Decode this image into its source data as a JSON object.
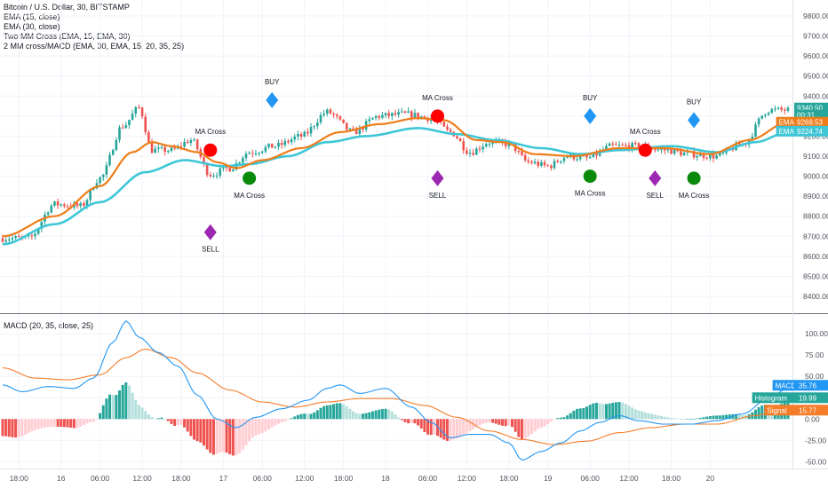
{
  "legend": {
    "title": "Bitcoin / U.S. Dollar, 30, BITSTAMP",
    "ema15": "EMA (15, close)",
    "ema30": "EMA (30, close)",
    "cross": "Two MM Cross (EMA, 15, EMA, 30)",
    "strategy": "2 MM cross/MACD (EMA, 30, EMA, 15, 20, 35, 25)",
    "macd": "MACD (20, 35, close, 25)"
  },
  "colors": {
    "up": "#26a69a",
    "down": "#ef5350",
    "ema15": "#ef7d1a",
    "ema30": "#3ec6d6",
    "macd_line": "#2196f3",
    "signal_line": "#f57c28",
    "hist_up_strong": "#26a69a",
    "hist_up_weak": "#b2dfdb",
    "hist_down_strong": "#ef5350",
    "hist_down_weak": "#ffcdd2",
    "buy": "#2196f3",
    "sell": "#9c27b0",
    "cross_red": "#ff0000",
    "cross_green": "#0a8a0a"
  },
  "chart_data": [
    {
      "type": "candlestick",
      "title": "Bitcoin / U.S. Dollar, 30, BITSTAMP",
      "ylim": [
        8320,
        9880
      ],
      "yticks": [
        "9800.00",
        "9700.00",
        "9600.00",
        "9500.00",
        "9400.00",
        "9300.00",
        "9200.00",
        "9100.00",
        "9000.00",
        "8900.00",
        "8800.00",
        "8700.00",
        "8600.00",
        "8500.00",
        "8400.00"
      ],
      "xticks": [
        "18:00",
        "16",
        "06:00",
        "12:00",
        "18:00",
        "17",
        "06:00",
        "12:00",
        "18:00",
        "18",
        "06:00",
        "12:00",
        "18:00",
        "19",
        "06:00",
        "12:00",
        "18:00",
        "20"
      ],
      "anchors": [
        {
          "i": 0,
          "v": 8690
        },
        {
          "i": 8,
          "v": 8690
        },
        {
          "i": 16,
          "v": 8860
        },
        {
          "i": 24,
          "v": 8850
        },
        {
          "i": 30,
          "v": 8990
        },
        {
          "i": 37,
          "v": 9250
        },
        {
          "i": 42,
          "v": 9340
        },
        {
          "i": 46,
          "v": 9130
        },
        {
          "i": 52,
          "v": 9130
        },
        {
          "i": 58,
          "v": 9180
        },
        {
          "i": 64,
          "v": 9010
        },
        {
          "i": 70,
          "v": 9040
        },
        {
          "i": 76,
          "v": 9120
        },
        {
          "i": 84,
          "v": 9150
        },
        {
          "i": 92,
          "v": 9200
        },
        {
          "i": 100,
          "v": 9320
        },
        {
          "i": 108,
          "v": 9220
        },
        {
          "i": 116,
          "v": 9300
        },
        {
          "i": 124,
          "v": 9310
        },
        {
          "i": 132,
          "v": 9290
        },
        {
          "i": 138,
          "v": 9220
        },
        {
          "i": 144,
          "v": 9120
        },
        {
          "i": 150,
          "v": 9170
        },
        {
          "i": 156,
          "v": 9160
        },
        {
          "i": 162,
          "v": 9070
        },
        {
          "i": 168,
          "v": 9050
        },
        {
          "i": 174,
          "v": 9100
        },
        {
          "i": 180,
          "v": 9090
        },
        {
          "i": 188,
          "v": 9150
        },
        {
          "i": 196,
          "v": 9150
        },
        {
          "i": 204,
          "v": 9130
        },
        {
          "i": 212,
          "v": 9110
        },
        {
          "i": 220,
          "v": 9100
        },
        {
          "i": 228,
          "v": 9160
        },
        {
          "i": 236,
          "v": 9330
        },
        {
          "i": 242,
          "v": 9330
        }
      ],
      "ema15": [
        {
          "i": 0,
          "v": 8700
        },
        {
          "i": 16,
          "v": 8800
        },
        {
          "i": 30,
          "v": 8950
        },
        {
          "i": 40,
          "v": 9120
        },
        {
          "i": 46,
          "v": 9170
        },
        {
          "i": 52,
          "v": 9150
        },
        {
          "i": 60,
          "v": 9120
        },
        {
          "i": 66,
          "v": 9070
        },
        {
          "i": 72,
          "v": 9040
        },
        {
          "i": 80,
          "v": 9080
        },
        {
          "i": 92,
          "v": 9140
        },
        {
          "i": 104,
          "v": 9220
        },
        {
          "i": 116,
          "v": 9260
        },
        {
          "i": 128,
          "v": 9290
        },
        {
          "i": 136,
          "v": 9280
        },
        {
          "i": 146,
          "v": 9180
        },
        {
          "i": 154,
          "v": 9170
        },
        {
          "i": 164,
          "v": 9110
        },
        {
          "i": 176,
          "v": 9100
        },
        {
          "i": 190,
          "v": 9140
        },
        {
          "i": 204,
          "v": 9140
        },
        {
          "i": 218,
          "v": 9110
        },
        {
          "i": 230,
          "v": 9180
        },
        {
          "i": 242,
          "v": 9270
        }
      ],
      "ema30": [
        {
          "i": 0,
          "v": 8660
        },
        {
          "i": 16,
          "v": 8760
        },
        {
          "i": 30,
          "v": 8870
        },
        {
          "i": 44,
          "v": 9020
        },
        {
          "i": 56,
          "v": 9080
        },
        {
          "i": 68,
          "v": 9050
        },
        {
          "i": 76,
          "v": 9060
        },
        {
          "i": 88,
          "v": 9100
        },
        {
          "i": 100,
          "v": 9170
        },
        {
          "i": 112,
          "v": 9200
        },
        {
          "i": 128,
          "v": 9240
        },
        {
          "i": 140,
          "v": 9210
        },
        {
          "i": 152,
          "v": 9180
        },
        {
          "i": 166,
          "v": 9140
        },
        {
          "i": 178,
          "v": 9110
        },
        {
          "i": 190,
          "v": 9130
        },
        {
          "i": 206,
          "v": 9150
        },
        {
          "i": 220,
          "v": 9120
        },
        {
          "i": 232,
          "v": 9170
        },
        {
          "i": 242,
          "v": 9220
        }
      ],
      "signals": [
        {
          "kind": "cross-red",
          "i": 64,
          "v": 9130,
          "label": "MA Cross",
          "label_pos": "above"
        },
        {
          "kind": "sell",
          "i": 64,
          "v": 8720,
          "label": "SELL",
          "label_pos": "below"
        },
        {
          "kind": "buy",
          "i": 83,
          "v": 9380,
          "label": "BUY",
          "label_pos": "above"
        },
        {
          "kind": "cross-green",
          "i": 76,
          "v": 8990,
          "label": "MA Cross",
          "label_pos": "below"
        },
        {
          "kind": "cross-red",
          "i": 134,
          "v": 9300,
          "label": "MA Cross",
          "label_pos": "above"
        },
        {
          "kind": "sell",
          "i": 134,
          "v": 8990,
          "label": "SELL",
          "label_pos": "below"
        },
        {
          "kind": "buy",
          "i": 181,
          "v": 9300,
          "label": "BUY",
          "label_pos": "above"
        },
        {
          "kind": "cross-green",
          "i": 181,
          "v": 9000,
          "label": "MA Cross",
          "label_pos": "below"
        },
        {
          "kind": "cross-red",
          "i": 198,
          "v": 9130,
          "label": "MA Cross",
          "label_pos": "above"
        },
        {
          "kind": "sell",
          "i": 201,
          "v": 8990,
          "label": "SELL",
          "label_pos": "below"
        },
        {
          "kind": "buy",
          "i": 213,
          "v": 9280,
          "label": "BUY",
          "label_pos": "above"
        },
        {
          "kind": "cross-green",
          "i": 213,
          "v": 8990,
          "label": "MA Cross",
          "label_pos": "below"
        }
      ],
      "badges": [
        {
          "label": "9340.50",
          "v": 9340.5,
          "color": "#26a69a"
        },
        {
          "label": "00:31",
          "v": 9305,
          "color": "#26a69a"
        },
        {
          "name": "EMA",
          "label": "9269.53",
          "v": 9269.53,
          "color": "#ef7d1a"
        },
        {
          "name": "EMA",
          "label": "9224.74",
          "v": 9224.74,
          "color": "#3ec6d6"
        }
      ]
    },
    {
      "type": "macd",
      "title": "MACD (20, 35, close, 25)",
      "ylim": [
        -58,
        122
      ],
      "yticks": [
        "100.00",
        "75.00",
        "50.00",
        "25.00",
        "0.00",
        "-25.00",
        "-50.00"
      ],
      "macd_line": [
        {
          "i": 0,
          "v": 40
        },
        {
          "i": 6,
          "v": 32
        },
        {
          "i": 14,
          "v": 38
        },
        {
          "i": 22,
          "v": 36
        },
        {
          "i": 28,
          "v": 48
        },
        {
          "i": 34,
          "v": 90
        },
        {
          "i": 38,
          "v": 115
        },
        {
          "i": 42,
          "v": 96
        },
        {
          "i": 48,
          "v": 78
        },
        {
          "i": 54,
          "v": 62
        },
        {
          "i": 60,
          "v": 28
        },
        {
          "i": 66,
          "v": 0
        },
        {
          "i": 72,
          "v": -10
        },
        {
          "i": 78,
          "v": 2
        },
        {
          "i": 86,
          "v": 12
        },
        {
          "i": 94,
          "v": 22
        },
        {
          "i": 100,
          "v": 36
        },
        {
          "i": 104,
          "v": 40
        },
        {
          "i": 110,
          "v": 30
        },
        {
          "i": 118,
          "v": 36
        },
        {
          "i": 126,
          "v": 14
        },
        {
          "i": 132,
          "v": -4
        },
        {
          "i": 138,
          "v": -22
        },
        {
          "i": 144,
          "v": -18
        },
        {
          "i": 150,
          "v": -18
        },
        {
          "i": 156,
          "v": -28
        },
        {
          "i": 160,
          "v": -48
        },
        {
          "i": 166,
          "v": -38
        },
        {
          "i": 172,
          "v": -28
        },
        {
          "i": 178,
          "v": -14
        },
        {
          "i": 184,
          "v": -4
        },
        {
          "i": 190,
          "v": 4
        },
        {
          "i": 196,
          "v": -2
        },
        {
          "i": 204,
          "v": -6
        },
        {
          "i": 212,
          "v": -6
        },
        {
          "i": 220,
          "v": -2
        },
        {
          "i": 228,
          "v": 6
        },
        {
          "i": 236,
          "v": 24
        },
        {
          "i": 242,
          "v": 36
        }
      ],
      "signal_line": [
        {
          "i": 0,
          "v": 60
        },
        {
          "i": 10,
          "v": 48
        },
        {
          "i": 20,
          "v": 46
        },
        {
          "i": 30,
          "v": 52
        },
        {
          "i": 38,
          "v": 72
        },
        {
          "i": 44,
          "v": 82
        },
        {
          "i": 52,
          "v": 72
        },
        {
          "i": 60,
          "v": 54
        },
        {
          "i": 70,
          "v": 34
        },
        {
          "i": 80,
          "v": 20
        },
        {
          "i": 90,
          "v": 14
        },
        {
          "i": 100,
          "v": 20
        },
        {
          "i": 110,
          "v": 24
        },
        {
          "i": 120,
          "v": 24
        },
        {
          "i": 130,
          "v": 16
        },
        {
          "i": 140,
          "v": 2
        },
        {
          "i": 150,
          "v": -14
        },
        {
          "i": 160,
          "v": -24
        },
        {
          "i": 170,
          "v": -30
        },
        {
          "i": 180,
          "v": -26
        },
        {
          "i": 190,
          "v": -16
        },
        {
          "i": 200,
          "v": -10
        },
        {
          "i": 210,
          "v": -6
        },
        {
          "i": 220,
          "v": -6
        },
        {
          "i": 232,
          "v": 4
        },
        {
          "i": 242,
          "v": 16
        }
      ],
      "badges": [
        {
          "name": "MACD",
          "label": "35.76",
          "v": 35.76,
          "color": "#2196f3"
        },
        {
          "name": "Histogram",
          "label": "19.99",
          "v": 19.99,
          "color": "#26a69a"
        },
        {
          "name": "Signal",
          "label": "15.77",
          "v": 15.77,
          "color": "#f57c28"
        }
      ]
    }
  ]
}
